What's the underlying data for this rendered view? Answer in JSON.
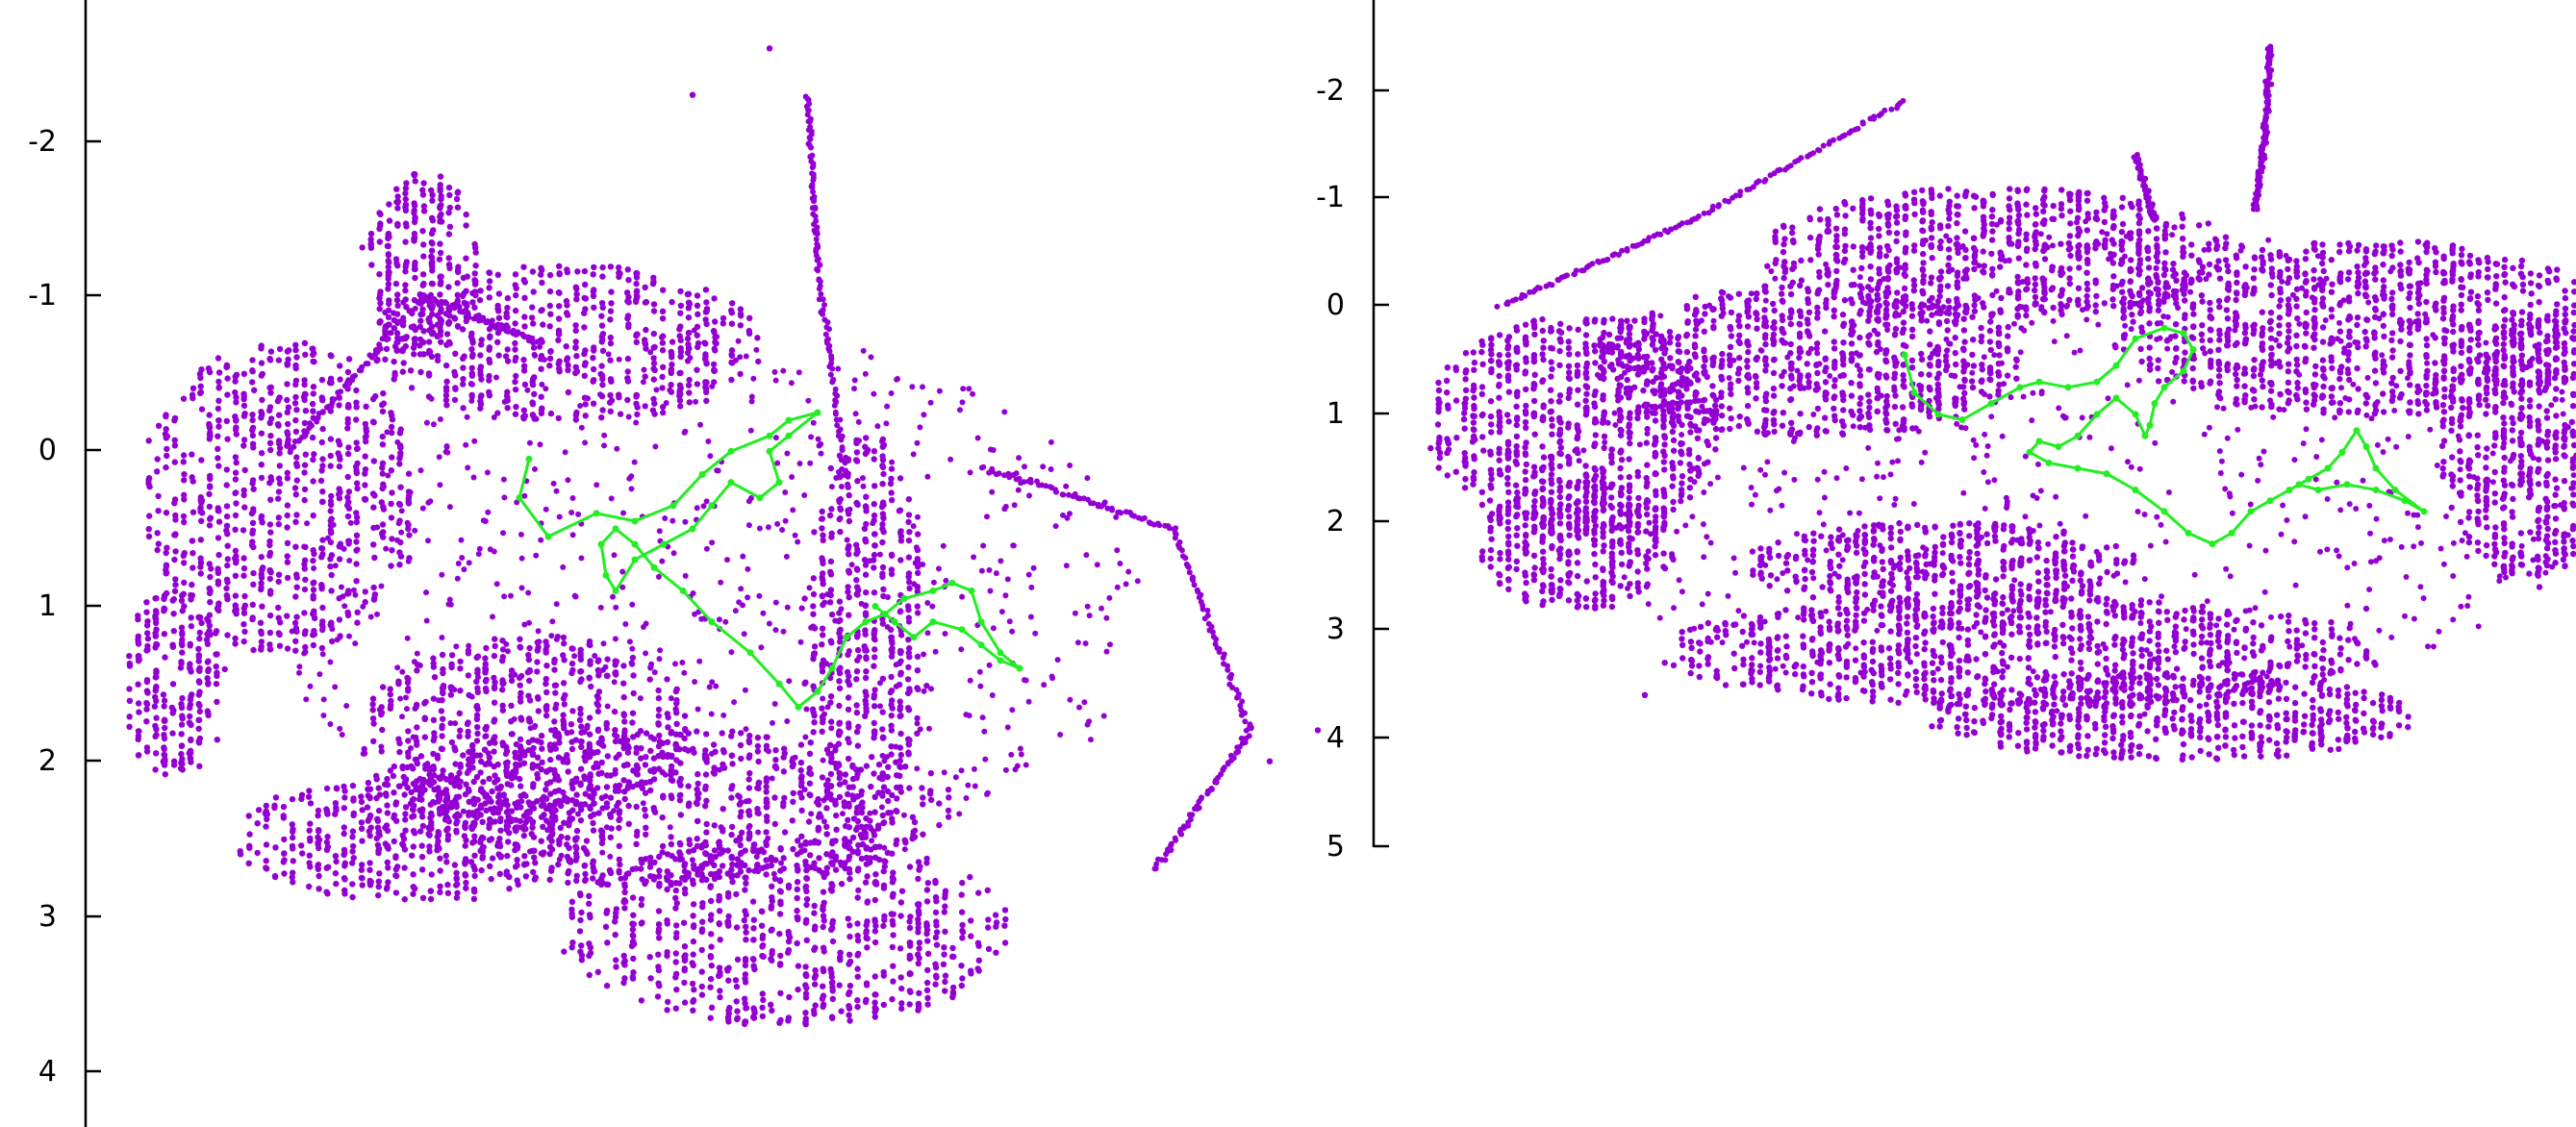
{
  "colors": {
    "map_points": "#9400d3",
    "trajectory": "#22ee22",
    "axis": "#000000"
  },
  "chart_data": [
    {
      "type": "scatter",
      "title": "",
      "xlabel": "",
      "ylabel": "",
      "y_axis": "inverted",
      "ylim": [
        -2.8,
        4.35
      ],
      "y_ticks": [
        -2,
        -1,
        0,
        1,
        2,
        3,
        4
      ],
      "y_tick_labels": [
        "-2",
        "-1",
        "0",
        "1",
        "2",
        "3",
        "4"
      ],
      "grid": false,
      "legend": "none",
      "series": [
        {
          "role": "map-points",
          "color": "#9400d3",
          "structure": {
            "blobs": [
              {
                "cx": 60,
                "cy": 1.5,
                "rx": 50,
                "ry": 0.6
              },
              {
                "cx": 170,
                "cy": 0.3,
                "rx": 140,
                "ry": 1.0
              },
              {
                "cx": 320,
                "cy": -1.2,
                "rx": 60,
                "ry": 0.6
              },
              {
                "cx": 470,
                "cy": -0.7,
                "rx": 200,
                "ry": 0.5
              },
              {
                "cx": 560,
                "cy": 2.3,
                "rx": 310,
                "ry": 0.5
              },
              {
                "cx": 430,
                "cy": 1.8,
                "rx": 170,
                "ry": 0.6
              },
              {
                "cx": 780,
                "cy": 1.2,
                "rx": 60,
                "ry": 1.3
              },
              {
                "cx": 700,
                "cy": 3.1,
                "rx": 230,
                "ry": 0.6
              },
              {
                "cx": 310,
                "cy": 2.5,
                "rx": 180,
                "ry": 0.4
              }
            ],
            "lines": [
              [
                [
                  180,
                  0.0
                ],
                [
                  320,
                  -1.0
                ],
                [
                  440,
                  -0.7
                ]
              ],
              [
                [
                  720,
                  -2.3
                ],
                [
                  730,
                  -1.2
                ],
                [
                  760,
                  0.2
                ]
              ],
              [
                [
                  900,
                  0.1
                ],
                [
                  1100,
                  0.5
                ],
                [
                  1180,
                  1.8
                ],
                [
                  1080,
                  2.7
                ]
              ]
            ],
            "spread": {
              "cx": 620,
              "cy": 1.0,
              "rx": 450,
              "ry": 1.8
            },
            "outliers": [
              [
                680,
                -2.6
              ],
              [
                600,
                -2.3
              ],
              [
                1250,
                1.8
              ],
              [
                1200,
                2.0
              ],
              [
                300,
                2.5
              ]
            ]
          }
        },
        {
          "role": "trajectory",
          "color": "#22ee22",
          "points": [
            [
              430,
              0.05
            ],
            [
              420,
              0.3
            ],
            [
              450,
              0.55
            ],
            [
              500,
              0.4
            ],
            [
              540,
              0.45
            ],
            [
              580,
              0.35
            ],
            [
              610,
              0.15
            ],
            [
              640,
              0.0
            ],
            [
              680,
              -0.1
            ],
            [
              700,
              -0.2
            ],
            [
              730,
              -0.25
            ],
            [
              700,
              -0.1
            ],
            [
              680,
              0.0
            ],
            [
              690,
              0.2
            ],
            [
              670,
              0.3
            ],
            [
              640,
              0.2
            ],
            [
              620,
              0.35
            ],
            [
              600,
              0.5
            ],
            [
              570,
              0.6
            ],
            [
              540,
              0.7
            ],
            [
              520,
              0.9
            ],
            [
              510,
              0.8
            ],
            [
              505,
              0.6
            ],
            [
              520,
              0.5
            ],
            [
              540,
              0.6
            ],
            [
              560,
              0.75
            ],
            [
              590,
              0.9
            ],
            [
              620,
              1.1
            ],
            [
              660,
              1.3
            ],
            [
              690,
              1.5
            ],
            [
              710,
              1.65
            ],
            [
              730,
              1.55
            ],
            [
              745,
              1.4
            ],
            [
              760,
              1.2
            ],
            [
              780,
              1.1
            ],
            [
              800,
              1.05
            ],
            [
              820,
              0.95
            ],
            [
              850,
              0.9
            ],
            [
              870,
              0.85
            ],
            [
              890,
              0.9
            ],
            [
              900,
              1.1
            ],
            [
              920,
              1.3
            ],
            [
              940,
              1.4
            ],
            [
              920,
              1.35
            ],
            [
              900,
              1.25
            ],
            [
              880,
              1.15
            ],
            [
              850,
              1.1
            ],
            [
              830,
              1.2
            ],
            [
              810,
              1.1
            ],
            [
              790,
              1.0
            ]
          ]
        }
      ]
    },
    {
      "type": "scatter",
      "title": "",
      "xlabel": "",
      "ylabel": "",
      "y_axis": "inverted",
      "ylim": [
        -2.8,
        5.0
      ],
      "y_ticks": [
        -2,
        -1,
        0,
        1,
        2,
        3,
        4,
        5
      ],
      "y_tick_labels": [
        "-2",
        "-1",
        "0",
        "1",
        "2",
        "3",
        "4",
        "5"
      ],
      "grid": false,
      "legend": "none",
      "series": [
        {
          "role": "map-points",
          "color": "#9400d3",
          "structure": {
            "blobs": [
              {
                "cx": 180,
                "cy": 1.1,
                "rx": 150,
                "ry": 1.0
              },
              {
                "cx": 180,
                "cy": 2.2,
                "rx": 100,
                "ry": 0.6
              },
              {
                "cx": 420,
                "cy": 0.5,
                "rx": 220,
                "ry": 0.7
              },
              {
                "cx": 620,
                "cy": -0.5,
                "rx": 240,
                "ry": 0.6
              },
              {
                "cx": 1000,
                "cy": 0.2,
                "rx": 260,
                "ry": 0.8
              },
              {
                "cx": 1170,
                "cy": 1.3,
                "rx": 90,
                "ry": 1.2
              },
              {
                "cx": 640,
                "cy": 3.2,
                "rx": 370,
                "ry": 0.5
              },
              {
                "cx": 800,
                "cy": 3.8,
                "rx": 250,
                "ry": 0.4
              },
              {
                "cx": 560,
                "cy": 2.4,
                "rx": 200,
                "ry": 0.4
              }
            ],
            "lines": [
              [
                [
                  900,
                  -2.4
                ],
                [
                  895,
                  -1.6
                ],
                [
                  885,
                  -0.9
                ]
              ],
              [
                [
                  760,
                  -1.4
                ],
                [
                  780,
                  -0.8
                ]
              ],
              [
                [
                  100,
                  0.0
                ],
                [
                  300,
                  -0.8
                ],
                [
                  520,
                  -1.9
                ]
              ]
            ],
            "spread": {
              "cx": 700,
              "cy": 1.5,
              "rx": 550,
              "ry": 2.3
            },
            "outliers": [
              [
                1265,
                1.5
              ],
              [
                1180,
                2.6
              ],
              [
                250,
                3.6
              ],
              [
                1000,
                2.8
              ]
            ]
          }
        },
        {
          "role": "trajectory",
          "color": "#22ee22",
          "points": [
            [
              520,
              0.45
            ],
            [
              530,
              0.8
            ],
            [
              555,
              1.0
            ],
            [
              580,
              1.05
            ],
            [
              610,
              0.9
            ],
            [
              640,
              0.75
            ],
            [
              660,
              0.7
            ],
            [
              690,
              0.75
            ],
            [
              720,
              0.7
            ],
            [
              740,
              0.55
            ],
            [
              760,
              0.3
            ],
            [
              790,
              0.2
            ],
            [
              810,
              0.25
            ],
            [
              820,
              0.4
            ],
            [
              810,
              0.6
            ],
            [
              790,
              0.75
            ],
            [
              780,
              0.9
            ],
            [
              775,
              1.1
            ],
            [
              770,
              1.2
            ],
            [
              760,
              1.0
            ],
            [
              740,
              0.85
            ],
            [
              720,
              1.0
            ],
            [
              700,
              1.2
            ],
            [
              680,
              1.3
            ],
            [
              660,
              1.25
            ],
            [
              650,
              1.35
            ],
            [
              670,
              1.45
            ],
            [
              700,
              1.5
            ],
            [
              730,
              1.55
            ],
            [
              760,
              1.7
            ],
            [
              790,
              1.9
            ],
            [
              815,
              2.1
            ],
            [
              840,
              2.2
            ],
            [
              860,
              2.1
            ],
            [
              880,
              1.9
            ],
            [
              900,
              1.8
            ],
            [
              920,
              1.7
            ],
            [
              940,
              1.6
            ],
            [
              960,
              1.5
            ],
            [
              975,
              1.35
            ],
            [
              990,
              1.15
            ],
            [
              1000,
              1.3
            ],
            [
              1010,
              1.5
            ],
            [
              1030,
              1.7
            ],
            [
              1060,
              1.9
            ],
            [
              1040,
              1.8
            ],
            [
              1010,
              1.7
            ],
            [
              980,
              1.65
            ],
            [
              950,
              1.7
            ],
            [
              930,
              1.65
            ]
          ]
        }
      ]
    }
  ]
}
